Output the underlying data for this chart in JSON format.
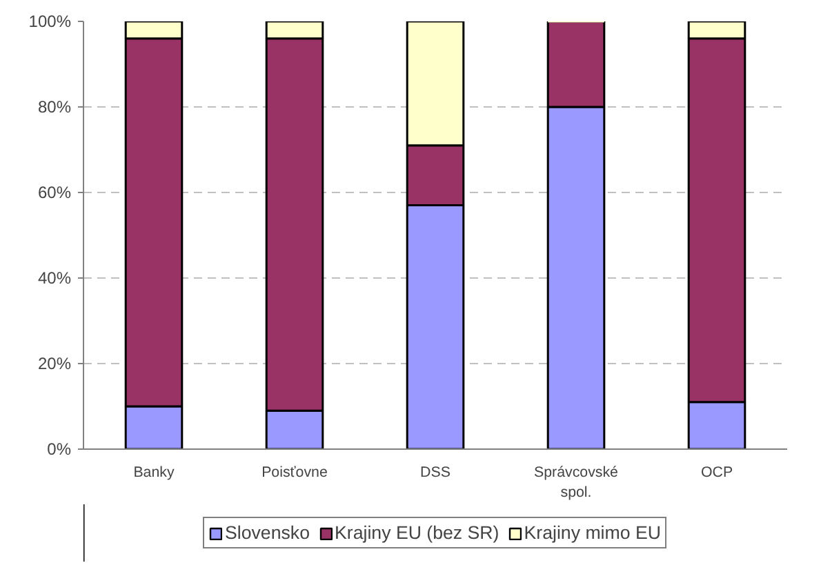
{
  "chart_data": {
    "type": "bar",
    "stacked": true,
    "categories": [
      "Banky",
      "Poisťovne",
      "DSS",
      "Správcovské spol.",
      "OCP"
    ],
    "series": [
      {
        "name": "Slovensko",
        "color": "#9999ff",
        "values": [
          10,
          9,
          57,
          80,
          11
        ]
      },
      {
        "name": "Krajiny EU (bez SR)",
        "color": "#993366",
        "values": [
          86,
          87,
          14,
          20,
          85
        ]
      },
      {
        "name": "Krajiny mimo EU",
        "color": "#ffffcc",
        "values": [
          4,
          4,
          29,
          0,
          4
        ]
      }
    ],
    "ylim": [
      0,
      100
    ],
    "yticks": [
      {
        "value": 0,
        "label": "0%"
      },
      {
        "value": 20,
        "label": "20%"
      },
      {
        "value": 40,
        "label": "40%"
      },
      {
        "value": 60,
        "label": "60%"
      },
      {
        "value": 80,
        "label": "80%"
      },
      {
        "value": 100,
        "label": "100%"
      }
    ],
    "grid": "y",
    "legend": "bottom"
  }
}
